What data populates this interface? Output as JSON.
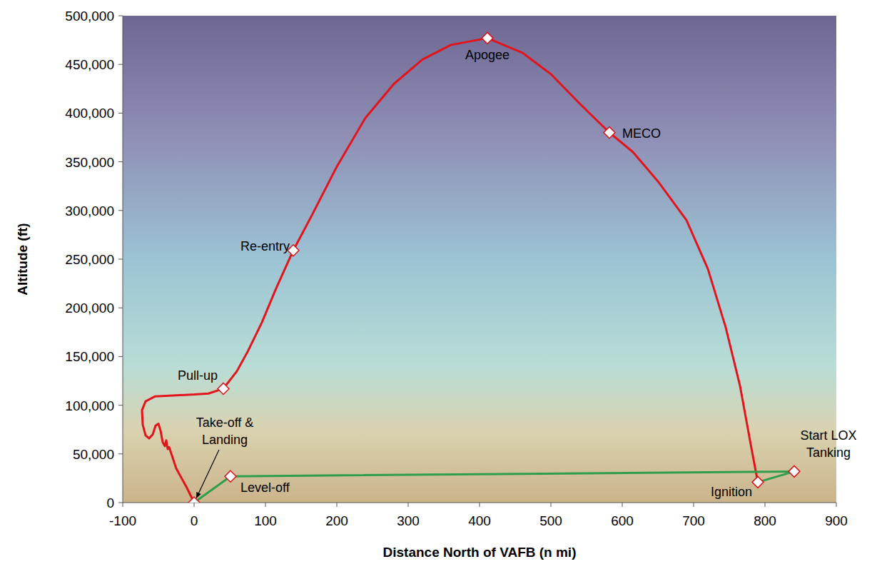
{
  "chart_data": {
    "type": "line",
    "x_label": "Distance North of VAFB (n mi)",
    "y_label": "Altitude (ft)",
    "xlim": [
      -100,
      900
    ],
    "xticks": [
      -100,
      0,
      100,
      200,
      300,
      400,
      500,
      600,
      700,
      800,
      900
    ],
    "ylim": [
      0,
      500000
    ],
    "yticks": [
      0,
      {
        "value": 50000,
        "label": "50,000"
      },
      {
        "value": 100000,
        "label": "100,000"
      },
      {
        "value": 150000,
        "label": "150,000"
      },
      {
        "value": 200000,
        "label": "200,000"
      },
      {
        "value": 250000,
        "label": "250,000"
      },
      {
        "value": 300000,
        "label": "300,000"
      },
      {
        "value": 350000,
        "label": "350,000"
      },
      {
        "value": 400000,
        "label": "400,000"
      },
      {
        "value": 450000,
        "label": "450,000"
      },
      {
        "value": 500000,
        "label": "500,000"
      }
    ],
    "grid": false,
    "marker": "diamond",
    "series": [
      {
        "color": "#e3141c",
        "line_style": "solid",
        "x": [
          790,
          780,
          765,
          745,
          720,
          690,
          650,
          615,
          582,
          540,
          500,
          460,
          411,
          360,
          320,
          280,
          240,
          200,
          165,
          139,
          115,
          95,
          75,
          60,
          41,
          20,
          0,
          -30,
          -55,
          -68,
          -73,
          -72,
          -68,
          -63,
          -58,
          -54,
          -50,
          -47,
          -44,
          -41,
          -39,
          -37,
          -35,
          -25,
          -10,
          0
        ],
        "values": [
          21000,
          60000,
          120000,
          180000,
          240000,
          290000,
          330000,
          360000,
          380000,
          410000,
          440000,
          462000,
          477000,
          470000,
          455000,
          430000,
          395000,
          345000,
          295000,
          259000,
          220000,
          185000,
          155000,
          135000,
          117000,
          112000,
          111000,
          110000,
          109000,
          104000,
          95000,
          80000,
          69000,
          66000,
          70000,
          79000,
          81000,
          74000,
          62000,
          58000,
          64000,
          55000,
          57000,
          35000,
          15000,
          0
        ]
      },
      {
        "color": "#2f9e4a",
        "line_style": "solid",
        "x": [
          0,
          51,
          841,
          790
        ],
        "values": [
          0,
          27000,
          32000,
          21000
        ]
      }
    ],
    "annotations": [
      {
        "text": "Apogee",
        "x": 411,
        "y": 477000
      },
      {
        "text": "MECO",
        "x": 582,
        "y": 380000
      },
      {
        "text": "Re-entry",
        "x": 139,
        "y": 259000
      },
      {
        "text": "Pull-up",
        "x": 41,
        "y": 117000
      },
      {
        "text": "Take-off & Landing",
        "x": 0,
        "y": 0
      },
      {
        "text": "Level-off",
        "x": 51,
        "y": 27000
      },
      {
        "text": "Ignition",
        "x": 790,
        "y": 21000
      },
      {
        "text": "Start LOX Tanking",
        "x": 841,
        "y": 32000
      }
    ]
  }
}
